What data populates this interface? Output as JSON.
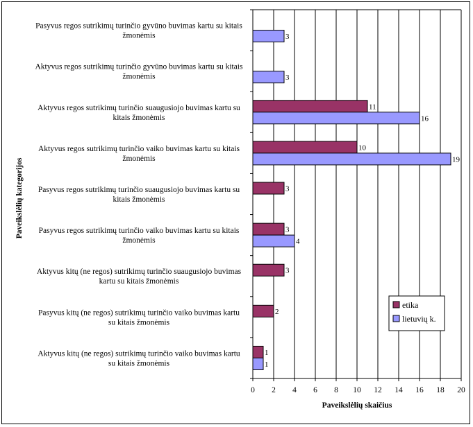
{
  "chart_data": {
    "type": "bar",
    "orientation": "horizontal",
    "title": "",
    "xlabel": "Paveikslėlių skaičius",
    "ylabel": "Paveikslėlių kategorijos",
    "xlim": [
      0,
      20
    ],
    "x_ticks": [
      0,
      2,
      4,
      6,
      8,
      10,
      12,
      14,
      16,
      18,
      20
    ],
    "grid": "vertical",
    "legend_position": "right",
    "categories": [
      [
        "Pasyvus  regos sutrikimų turinčio gyvūno buvimas kartu su kitais",
        "žmonėmis"
      ],
      [
        "Aktyvus regos sutrikimų turinčio gyvūno buvimas kartu su kitais",
        "žmonėmis"
      ],
      [
        "Aktyvus regos sutrikimų turinčio suaugusiojo buvimas kartu su",
        "kitais žmonėmis"
      ],
      [
        "Aktyvus regos sutrikimų turinčio vaiko buvimas kartu su kitais",
        "žmonėmis"
      ],
      [
        "Pasyvus regos sutrikimų turinčio suaugusiojo buvimas kartu su",
        "kitais žmonėmis"
      ],
      [
        "Pasyvus  regos sutrikimų turinčio vaiko buvimas kartu su kitais",
        "žmonėmis"
      ],
      [
        "Aktyvus kitų (ne regos) sutrikimų turinčio suaugusiojo buvimas",
        "kartu su kitais žmonėmis"
      ],
      [
        "Pasyvus kitų (ne regos)  sutrikimų turinčio vaiko buvimas kartu",
        "su kitais žmonėmis"
      ],
      [
        "Aktyvus kitų (ne regos)  sutrikimų turinčio vaiko buvimas kartu",
        "su kitais žmonėmis"
      ]
    ],
    "series": [
      {
        "name": "etika",
        "color": "#993366",
        "values": [
          null,
          null,
          11,
          10,
          3,
          3,
          3,
          2,
          1
        ]
      },
      {
        "name": "lietuvių k.",
        "color": "#9999ff",
        "values": [
          3,
          3,
          16,
          19,
          null,
          4,
          null,
          null,
          1
        ]
      }
    ]
  }
}
